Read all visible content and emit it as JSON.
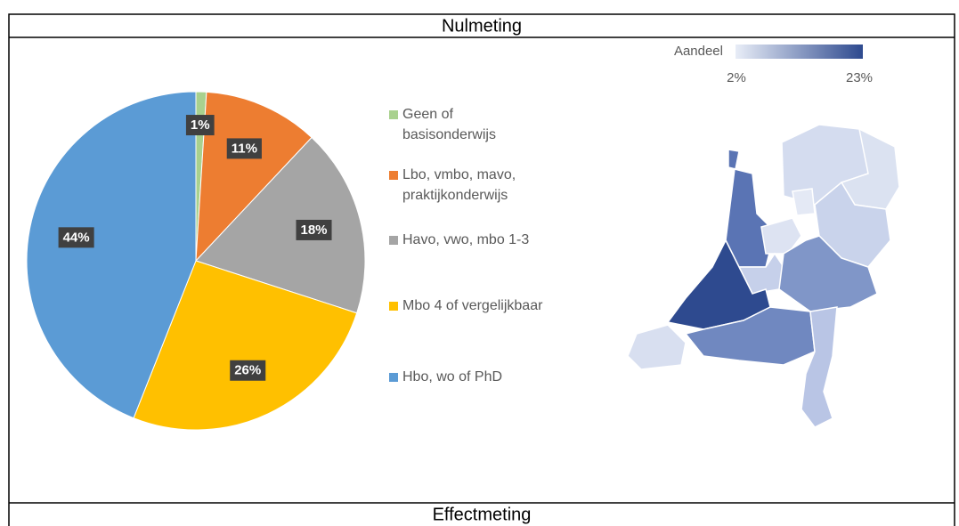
{
  "table": {
    "header": "Nulmeting",
    "footer": "Effectmeting"
  },
  "chart_data": {
    "type": "pie",
    "categories": [
      "Geen of basisonderwijs",
      "Lbo, vmbo, mavo, praktijkonderwijs",
      "Havo, vwo, mbo 1-3",
      "Mbo 4 of vergelijkbaar",
      "Hbo, wo of PhD"
    ],
    "values": [
      1,
      11,
      18,
      26,
      44
    ],
    "value_labels": [
      "1%",
      "11%",
      "18%",
      "26%",
      "44%"
    ],
    "colors": [
      "#a9d18e",
      "#ed7d31",
      "#a5a5a5",
      "#ffc000",
      "#5b9bd5"
    ]
  },
  "map": {
    "legend_title": "Aandeel",
    "min_label": "2%",
    "max_label": "23%"
  }
}
